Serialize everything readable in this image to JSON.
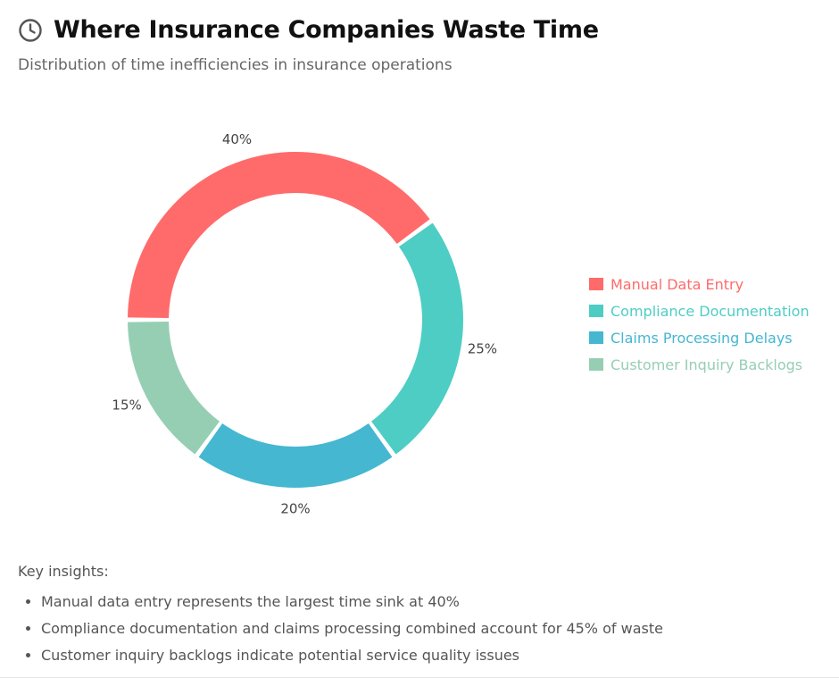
{
  "header": {
    "icon": "clock-icon",
    "title": "Where Insurance Companies Waste Time",
    "subtitle": "Distribution of time inefficiencies in insurance operations"
  },
  "chart_data": {
    "type": "pie",
    "variant": "donut",
    "title": "Where Insurance Companies Waste Time",
    "subtitle": "Distribution of time inefficiencies in insurance operations",
    "categories": [
      "Manual Data Entry",
      "Compliance Documentation",
      "Claims Processing Delays",
      "Customer Inquiry Backlogs"
    ],
    "values": [
      40,
      25,
      20,
      15
    ],
    "labels": [
      "40%",
      "25%",
      "20%",
      "15%"
    ],
    "colors": [
      "#FF6B6B",
      "#4ECDC4",
      "#45B7D1",
      "#96CEB4"
    ],
    "legend_position": "right"
  },
  "insights": {
    "title": "Key insights:",
    "items": [
      "Manual data entry represents the largest time sink at 40%",
      "Compliance documentation and claims processing combined account for 45% of waste",
      "Customer inquiry backlogs indicate potential service quality issues"
    ]
  }
}
